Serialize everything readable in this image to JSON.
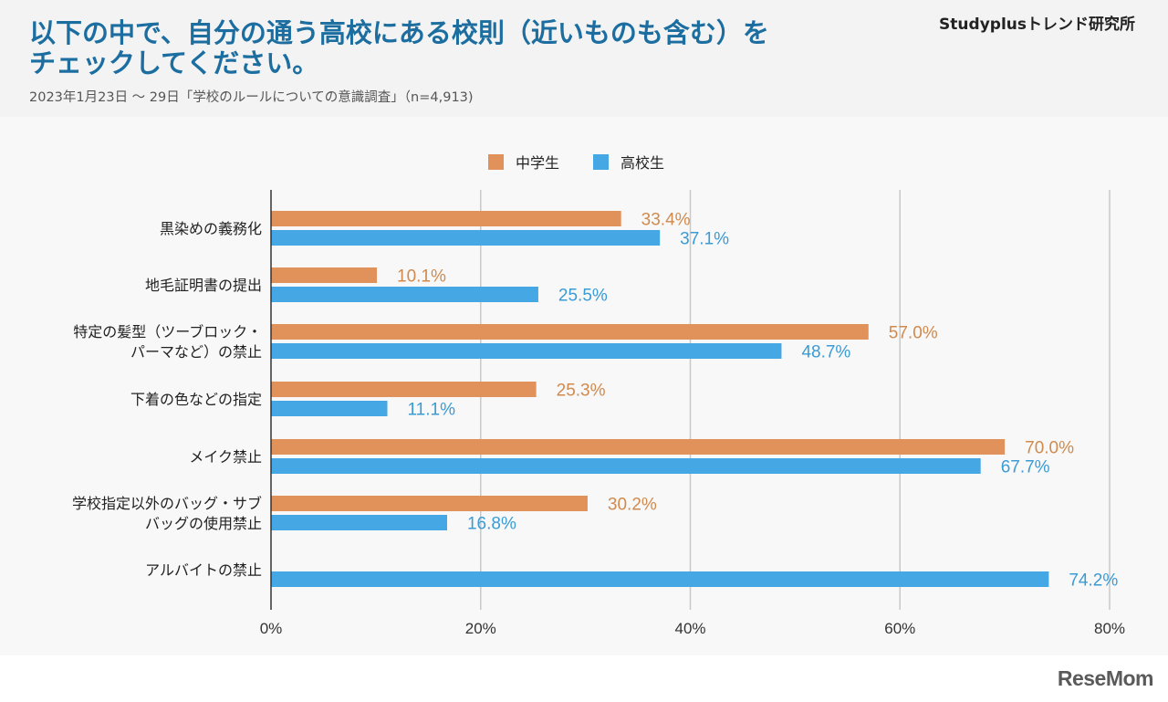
{
  "header": {
    "title_line1": "以下の中で、自分の通う高校にある校則（近いものも含む）を",
    "title_line2": "チェックしてください。",
    "subtitle": "2023年1月23日 〜 29日「学校のルールについての意識調査」（n=4,913)",
    "brand": "Studyplusトレンド研究所"
  },
  "footer": {
    "logo": "ReseMom"
  },
  "colors": {
    "middle": "#e0925a",
    "high": "#45a8e4",
    "middle_text": "#d08a4e",
    "high_text": "#3a9bd5"
  },
  "chart_data": {
    "type": "bar",
    "orientation": "horizontal",
    "title": "以下の中で、自分の通う高校にある校則（近いものも含む）をチェックしてください。",
    "categories": [
      [
        "黒染めの義務化"
      ],
      [
        "地毛証明書の提出"
      ],
      [
        "特定の髪型（ツーブロック・",
        "パーマなど）の禁止"
      ],
      [
        "下着の色などの指定"
      ],
      [
        "メイク禁止"
      ],
      [
        "学校指定以外のバッグ・サブ",
        "バッグの使用禁止"
      ],
      [
        "アルバイトの禁止"
      ]
    ],
    "series": [
      {
        "name": "中学生",
        "values": [
          33.4,
          10.1,
          57.0,
          25.3,
          70.0,
          30.2,
          null
        ],
        "labels": [
          "33.4%",
          "10.1%",
          "57.0%",
          "25.3%",
          "70.0%",
          "30.2%",
          null
        ]
      },
      {
        "name": "高校生",
        "values": [
          37.1,
          25.5,
          48.7,
          11.1,
          67.7,
          16.8,
          74.2
        ],
        "labels": [
          "37.1%",
          "25.5%",
          "48.7%",
          "11.1%",
          "67.7%",
          "16.8%",
          "74.2%"
        ]
      }
    ],
    "xlim": [
      0,
      80
    ],
    "xticks": [
      0,
      20,
      40,
      60,
      80
    ],
    "xtick_labels": [
      "0%",
      "20%",
      "40%",
      "60%",
      "80%"
    ],
    "grid": true,
    "legend": "top-center"
  }
}
